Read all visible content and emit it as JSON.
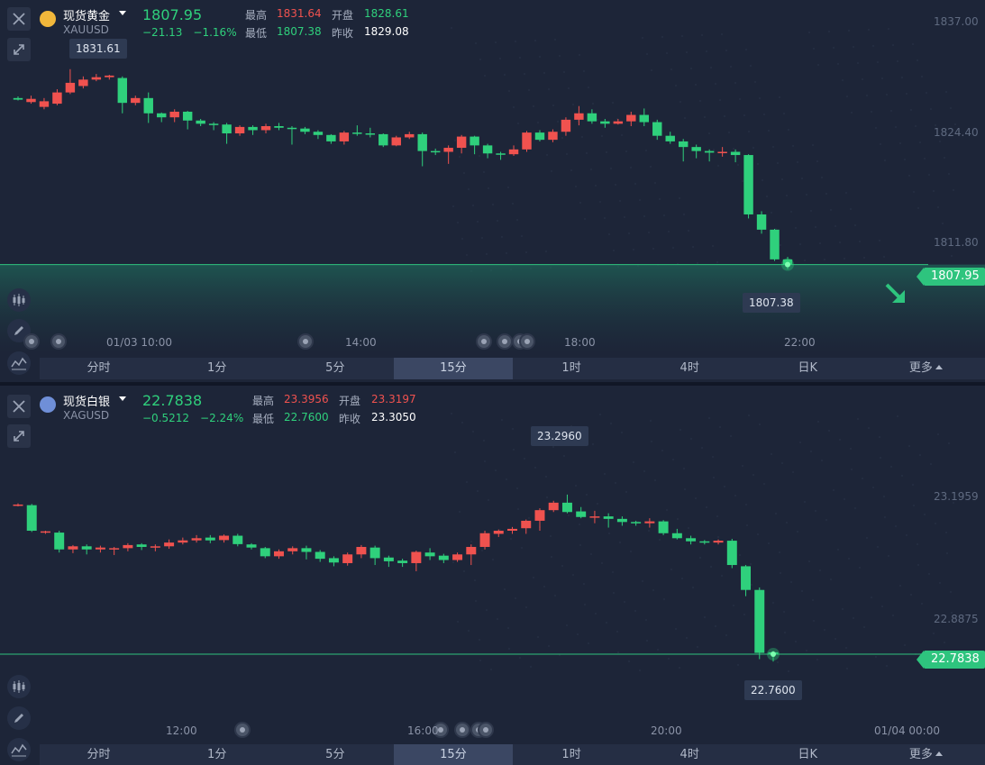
{
  "gold": {
    "name": "现货黄金",
    "code": "XAUUSD",
    "price": "1807.95",
    "change": "−21.13",
    "change_pct": "−1.16%",
    "stats": {
      "high_label": "最高",
      "high": "1831.64",
      "open_label": "开盘",
      "open": "1828.61",
      "low_label": "最低",
      "low": "1807.38",
      "prev_label": "昨收",
      "prev": "1829.08"
    },
    "max_callout": "1831.61",
    "min_callout": "1807.38",
    "last_tag": "1807.95",
    "y_axis": [
      "1837.00",
      "1824.40",
      "1811.80"
    ],
    "x_axis": [
      "01/03 10:00",
      "14:00",
      "18:00",
      "22:00"
    ]
  },
  "silver": {
    "name": "现货白银",
    "code": "XAGUSD",
    "price": "22.7838",
    "change": "−0.5212",
    "change_pct": "−2.24%",
    "stats": {
      "high_label": "最高",
      "high": "23.3956",
      "open_label": "开盘",
      "open": "23.3197",
      "low_label": "最低",
      "low": "22.7600",
      "prev_label": "昨收",
      "prev": "23.3050"
    },
    "max_callout": "23.2960",
    "min_callout": "22.7600",
    "last_tag": "22.7838",
    "y_axis": [
      "23.1959",
      "22.8875"
    ],
    "x_axis": [
      "12:00",
      "16:00",
      "20:00",
      "01/04 00:00"
    ]
  },
  "tabs": [
    "分时",
    "1分",
    "5分",
    "15分",
    "1时",
    "4时",
    "日K",
    "更多"
  ],
  "active_tab": "15分",
  "icons": [
    "close-icon",
    "expand-icon",
    "candlestick-icon",
    "pencil-icon",
    "indicator-icon",
    "trend-down-arrow-icon"
  ],
  "colors": {
    "up": "#f0524f",
    "down": "#2fd07c",
    "tag": "#2ec47e",
    "background": "#1d2538"
  },
  "chart_data": [
    {
      "type": "candlestick",
      "title": "现货黄金 XAUUSD",
      "interval": "15分",
      "ylim": [
        1806,
        1838
      ],
      "yticks": [
        1837.0,
        1824.4,
        1811.8
      ],
      "xticks": [
        "01/03 10:00",
        "14:00",
        "18:00",
        "22:00"
      ],
      "last_price": 1807.95,
      "candles": [
        [
          1828.7,
          1828.5,
          1828.9,
          1828.4
        ],
        [
          1828.2,
          1828.6,
          1829.0,
          1828.0
        ],
        [
          1827.6,
          1828.3,
          1828.7,
          1827.3
        ],
        [
          1828.0,
          1829.4,
          1829.8,
          1827.8
        ],
        [
          1829.4,
          1830.6,
          1832.3,
          1829.2
        ],
        [
          1830.2,
          1831.0,
          1831.4,
          1829.9
        ],
        [
          1831.0,
          1831.3,
          1831.7,
          1830.8
        ],
        [
          1831.3,
          1831.5,
          1831.6,
          1831.0
        ],
        [
          1831.2,
          1828.1,
          1831.4,
          1826.8
        ],
        [
          1828.1,
          1828.7,
          1829.0,
          1827.8
        ],
        [
          1828.7,
          1826.8,
          1829.4,
          1825.6
        ],
        [
          1826.8,
          1826.3,
          1826.9,
          1825.7
        ],
        [
          1826.3,
          1827.0,
          1827.3,
          1825.7
        ],
        [
          1827.0,
          1825.9,
          1827.1,
          1824.8
        ],
        [
          1825.9,
          1825.5,
          1826.1,
          1825.2
        ],
        [
          1825.5,
          1825.4,
          1825.7,
          1824.7
        ],
        [
          1825.4,
          1824.3,
          1825.6,
          1823.0
        ],
        [
          1824.3,
          1825.1,
          1825.3,
          1824.0
        ],
        [
          1825.1,
          1824.7,
          1825.3,
          1824.1
        ],
        [
          1824.7,
          1825.2,
          1825.5,
          1824.3
        ],
        [
          1825.2,
          1825.0,
          1825.6,
          1824.7
        ],
        [
          1825.0,
          1824.9,
          1825.2,
          1822.9
        ],
        [
          1824.9,
          1824.5,
          1825.1,
          1824.2
        ],
        [
          1824.5,
          1824.1,
          1824.7,
          1823.6
        ],
        [
          1824.1,
          1823.3,
          1824.2,
          1823.0
        ],
        [
          1823.3,
          1824.4,
          1824.6,
          1822.9
        ],
        [
          1824.4,
          1824.3,
          1825.3,
          1824.0
        ],
        [
          1824.3,
          1824.2,
          1825.0,
          1823.8
        ],
        [
          1824.2,
          1822.8,
          1824.3,
          1822.6
        ],
        [
          1822.8,
          1823.8,
          1824.0,
          1822.7
        ],
        [
          1823.8,
          1824.2,
          1824.5,
          1823.6
        ],
        [
          1824.2,
          1822.1,
          1824.4,
          1820.2
        ],
        [
          1822.1,
          1822.0,
          1822.4,
          1821.6
        ],
        [
          1822.0,
          1822.5,
          1822.8,
          1820.5
        ],
        [
          1822.5,
          1823.9,
          1824.1,
          1821.8
        ],
        [
          1823.9,
          1822.8,
          1824.0,
          1821.7
        ],
        [
          1822.8,
          1821.8,
          1823.0,
          1821.2
        ],
        [
          1821.8,
          1821.7,
          1822.0,
          1821.0
        ],
        [
          1821.7,
          1822.3,
          1822.8,
          1821.5
        ],
        [
          1822.3,
          1824.4,
          1824.6,
          1822.0
        ],
        [
          1824.4,
          1823.5,
          1824.7,
          1823.3
        ],
        [
          1823.5,
          1824.5,
          1824.8,
          1823.2
        ],
        [
          1824.5,
          1826.0,
          1826.3,
          1824.0
        ],
        [
          1826.0,
          1826.8,
          1827.7,
          1825.3
        ],
        [
          1826.8,
          1825.8,
          1827.3,
          1825.5
        ],
        [
          1825.8,
          1825.5,
          1826.1,
          1825.0
        ],
        [
          1825.5,
          1825.8,
          1826.1,
          1825.4
        ],
        [
          1825.8,
          1826.6,
          1827.0,
          1825.2
        ],
        [
          1826.6,
          1825.7,
          1827.4,
          1825.2
        ],
        [
          1825.7,
          1824.0,
          1826.0,
          1823.5
        ],
        [
          1824.0,
          1823.3,
          1824.5,
          1823.0
        ],
        [
          1823.3,
          1822.6,
          1823.6,
          1820.8
        ],
        [
          1822.6,
          1822.1,
          1822.9,
          1821.2
        ],
        [
          1822.1,
          1821.9,
          1822.3,
          1820.8
        ],
        [
          1821.9,
          1822.0,
          1822.6,
          1821.4
        ],
        [
          1822.0,
          1821.6,
          1822.3,
          1820.7
        ],
        [
          1821.6,
          1814.2,
          1821.7,
          1813.7
        ],
        [
          1814.2,
          1812.3,
          1814.6,
          1811.8
        ],
        [
          1812.3,
          1808.6,
          1812.4,
          1808.4
        ],
        [
          1808.6,
          1807.95,
          1808.9,
          1807.38
        ]
      ]
    },
    {
      "type": "candlestick",
      "title": "现货白银 XAGUSD",
      "interval": "15分",
      "ylim": [
        22.7,
        23.42
      ],
      "yticks": [
        23.1959,
        22.8875
      ],
      "xticks": [
        "12:00",
        "16:00",
        "20:00",
        "01/04 00:00"
      ],
      "last_price": 22.7838,
      "candles": [
        [
          23.262,
          23.264,
          23.268,
          23.258
        ],
        [
          23.262,
          23.18,
          23.266,
          23.176
        ],
        [
          23.175,
          23.178,
          23.18,
          23.17
        ],
        [
          23.174,
          23.12,
          23.18,
          23.11
        ],
        [
          23.12,
          23.13,
          23.134,
          23.108
        ],
        [
          23.13,
          23.12,
          23.136,
          23.104
        ],
        [
          23.12,
          23.126,
          23.132,
          23.11
        ],
        [
          23.122,
          23.124,
          23.128,
          23.102
        ],
        [
          23.124,
          23.134,
          23.14,
          23.114
        ],
        [
          23.136,
          23.128,
          23.14,
          23.118
        ],
        [
          23.126,
          23.13,
          23.136,
          23.114
        ],
        [
          23.13,
          23.142,
          23.152,
          23.122
        ],
        [
          23.142,
          23.149,
          23.158,
          23.136
        ],
        [
          23.149,
          23.156,
          23.166,
          23.142
        ],
        [
          23.158,
          23.149,
          23.166,
          23.14
        ],
        [
          23.15,
          23.164,
          23.168,
          23.142
        ],
        [
          23.164,
          23.137,
          23.17,
          23.13
        ],
        [
          23.136,
          23.126,
          23.14,
          23.12
        ],
        [
          23.124,
          23.098,
          23.128,
          23.092
        ],
        [
          23.098,
          23.114,
          23.12,
          23.09
        ],
        [
          23.114,
          23.124,
          23.13,
          23.104
        ],
        [
          23.124,
          23.112,
          23.132,
          23.088
        ],
        [
          23.112,
          23.09,
          23.118,
          23.08
        ],
        [
          23.092,
          23.078,
          23.098,
          23.066
        ],
        [
          23.076,
          23.104,
          23.11,
          23.068
        ],
        [
          23.104,
          23.128,
          23.134,
          23.092
        ],
        [
          23.126,
          23.092,
          23.132,
          23.07
        ],
        [
          23.094,
          23.082,
          23.1,
          23.064
        ],
        [
          23.084,
          23.076,
          23.09,
          23.064
        ],
        [
          23.076,
          23.112,
          23.116,
          23.05
        ],
        [
          23.11,
          23.098,
          23.124,
          23.086
        ],
        [
          23.1,
          23.086,
          23.106,
          23.076
        ],
        [
          23.086,
          23.104,
          23.11,
          23.08
        ],
        [
          23.104,
          23.128,
          23.136,
          23.07
        ],
        [
          23.128,
          23.172,
          23.18,
          23.12
        ],
        [
          23.17,
          23.18,
          23.184,
          23.16
        ],
        [
          23.18,
          23.186,
          23.192,
          23.17
        ],
        [
          23.188,
          23.212,
          23.216,
          23.17
        ],
        [
          23.212,
          23.246,
          23.252,
          23.18
        ],
        [
          23.246,
          23.27,
          23.276,
          23.24
        ],
        [
          23.27,
          23.24,
          23.296,
          23.236
        ],
        [
          23.242,
          23.224,
          23.256,
          23.22
        ],
        [
          23.226,
          23.226,
          23.244,
          23.204
        ],
        [
          23.226,
          23.218,
          23.236,
          23.19
        ],
        [
          23.218,
          23.208,
          23.226,
          23.196
        ],
        [
          23.208,
          23.204,
          23.212,
          23.196
        ],
        [
          23.204,
          23.21,
          23.22,
          23.19
        ],
        [
          23.21,
          23.172,
          23.214,
          23.166
        ],
        [
          23.172,
          23.156,
          23.186,
          23.152
        ],
        [
          23.156,
          23.146,
          23.164,
          23.136
        ],
        [
          23.146,
          23.142,
          23.15,
          23.136
        ],
        [
          23.142,
          23.148,
          23.152,
          23.136
        ],
        [
          23.148,
          23.07,
          23.154,
          23.06
        ],
        [
          23.066,
          22.99,
          23.07,
          22.97
        ],
        [
          22.99,
          22.788,
          22.998,
          22.768
        ],
        [
          22.79,
          22.7838,
          22.794,
          22.76
        ]
      ]
    }
  ]
}
